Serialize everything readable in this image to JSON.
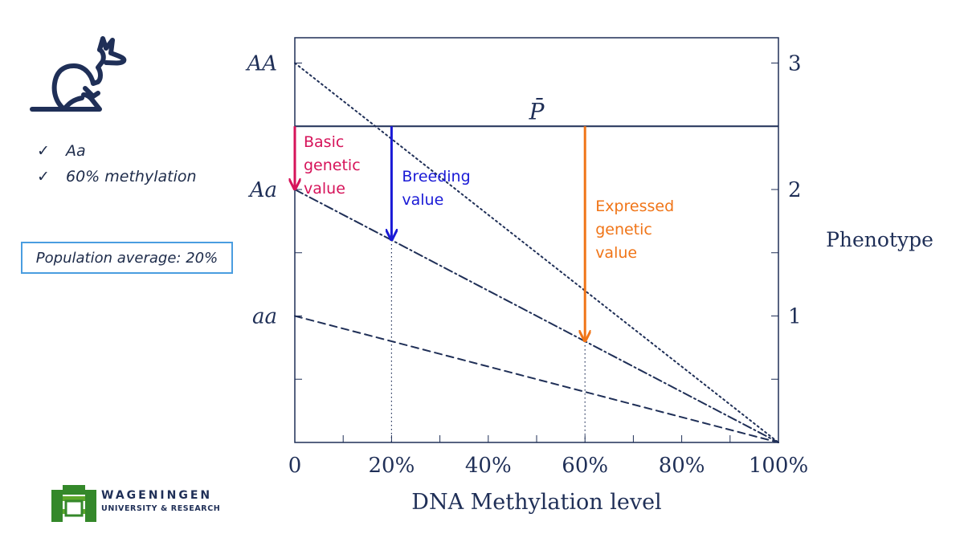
{
  "profile": {
    "icon": "kangaroo-icon",
    "checks": [
      "Aa",
      "60% methylation"
    ],
    "population_label": "Population average: 20%"
  },
  "logo": {
    "line1": "WAGENINGEN",
    "line2": "UNIVERSITY & RESEARCH"
  },
  "chart_data": {
    "type": "line",
    "xlabel": "DNA Methylation level",
    "ylabel_right": "Phenotype",
    "xlim": [
      0,
      100
    ],
    "ylim": [
      0,
      3.2
    ],
    "x_ticks": [
      0,
      20,
      40,
      60,
      80,
      100
    ],
    "x_tick_labels": [
      "0",
      "20%",
      "40%",
      "60%",
      "80%",
      "100%"
    ],
    "y_ticks_right": [
      1,
      2,
      3
    ],
    "y_tick_labels_right": [
      "1",
      "2",
      "3"
    ],
    "genotype_labels": [
      {
        "label": "AA",
        "y": 3
      },
      {
        "label": "Aa",
        "y": 2
      },
      {
        "label": "aa",
        "y": 1
      }
    ],
    "mean_line": {
      "label": "P̄",
      "y": 2.5
    },
    "series": [
      {
        "style": "dotted",
        "x": [
          0,
          100
        ],
        "y": [
          3,
          0
        ]
      },
      {
        "style": "dash-dot",
        "x": [
          0,
          100
        ],
        "y": [
          2,
          0
        ]
      },
      {
        "style": "dashed",
        "x": [
          0,
          100
        ],
        "y": [
          1,
          0
        ]
      }
    ],
    "arrows": [
      {
        "x": 0,
        "y_from": 2.5,
        "y_to": 2.0,
        "label_lines": [
          "Basic",
          "genetic",
          "value"
        ],
        "color": "#d6135a"
      },
      {
        "x": 20,
        "y_from": 2.5,
        "y_to": 1.6,
        "label_lines": [
          "Breeding",
          "value"
        ],
        "color": "#1a1ad6"
      },
      {
        "x": 60,
        "y_from": 2.5,
        "y_to": 0.8,
        "label_lines": [
          "Expressed",
          "genetic",
          "value"
        ],
        "color": "#f07518"
      }
    ],
    "vertical_guides_x": [
      20,
      60
    ],
    "colors": {
      "axis": "#1f2f57",
      "line": "#1f2f57"
    }
  }
}
